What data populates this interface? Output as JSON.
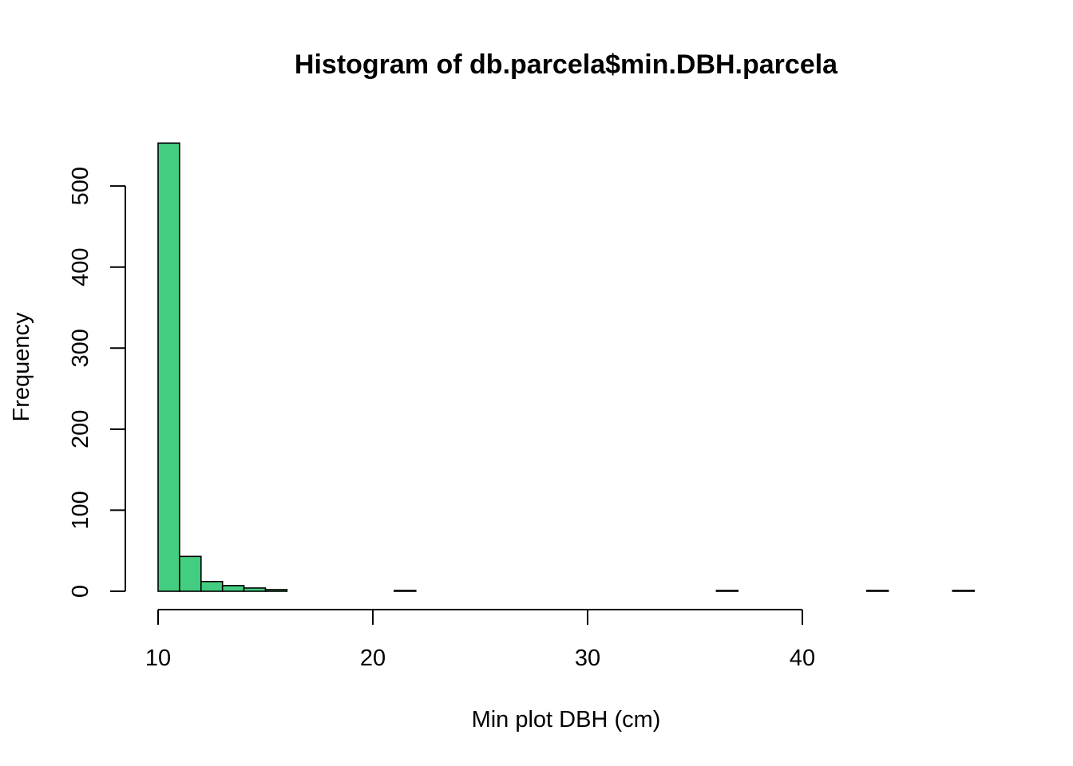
{
  "chart_data": {
    "type": "bar",
    "title": "Histogram of db.parcela$min.DBH.parcela",
    "xlabel": "Min plot DBH (cm)",
    "ylabel": "Frequency",
    "bar_color": "#43CD80",
    "border_color": "#000000",
    "bin_width": 1,
    "xlim": [
      10,
      48
    ],
    "ylim": [
      0,
      560
    ],
    "x_ticks": [
      10,
      20,
      30,
      40
    ],
    "y_ticks": [
      0,
      100,
      200,
      300,
      400,
      500
    ],
    "grid": false,
    "bins": [
      {
        "start": 10,
        "end": 11,
        "value": 553
      },
      {
        "start": 11,
        "end": 12,
        "value": 43
      },
      {
        "start": 12,
        "end": 13,
        "value": 12
      },
      {
        "start": 13,
        "end": 14,
        "value": 7
      },
      {
        "start": 14,
        "end": 15,
        "value": 4
      },
      {
        "start": 15,
        "end": 16,
        "value": 2
      },
      {
        "start": 16,
        "end": 17,
        "value": 0
      },
      {
        "start": 17,
        "end": 18,
        "value": 0
      },
      {
        "start": 18,
        "end": 19,
        "value": 0
      },
      {
        "start": 19,
        "end": 20,
        "value": 0
      },
      {
        "start": 20,
        "end": 21,
        "value": 0
      },
      {
        "start": 21,
        "end": 22,
        "value": 1
      },
      {
        "start": 22,
        "end": 23,
        "value": 0
      },
      {
        "start": 23,
        "end": 24,
        "value": 0
      },
      {
        "start": 24,
        "end": 25,
        "value": 0
      },
      {
        "start": 25,
        "end": 26,
        "value": 0
      },
      {
        "start": 26,
        "end": 27,
        "value": 0
      },
      {
        "start": 27,
        "end": 28,
        "value": 0
      },
      {
        "start": 28,
        "end": 29,
        "value": 0
      },
      {
        "start": 29,
        "end": 30,
        "value": 0
      },
      {
        "start": 30,
        "end": 31,
        "value": 0
      },
      {
        "start": 31,
        "end": 32,
        "value": 0
      },
      {
        "start": 32,
        "end": 33,
        "value": 0
      },
      {
        "start": 33,
        "end": 34,
        "value": 0
      },
      {
        "start": 34,
        "end": 35,
        "value": 0
      },
      {
        "start": 35,
        "end": 36,
        "value": 0
      },
      {
        "start": 36,
        "end": 37,
        "value": 1
      },
      {
        "start": 37,
        "end": 38,
        "value": 0
      },
      {
        "start": 38,
        "end": 39,
        "value": 0
      },
      {
        "start": 39,
        "end": 40,
        "value": 0
      },
      {
        "start": 40,
        "end": 41,
        "value": 0
      },
      {
        "start": 41,
        "end": 42,
        "value": 0
      },
      {
        "start": 42,
        "end": 43,
        "value": 0
      },
      {
        "start": 43,
        "end": 44,
        "value": 1
      },
      {
        "start": 44,
        "end": 45,
        "value": 0
      },
      {
        "start": 45,
        "end": 46,
        "value": 0
      },
      {
        "start": 46,
        "end": 47,
        "value": 0
      },
      {
        "start": 47,
        "end": 48,
        "value": 1
      }
    ]
  }
}
